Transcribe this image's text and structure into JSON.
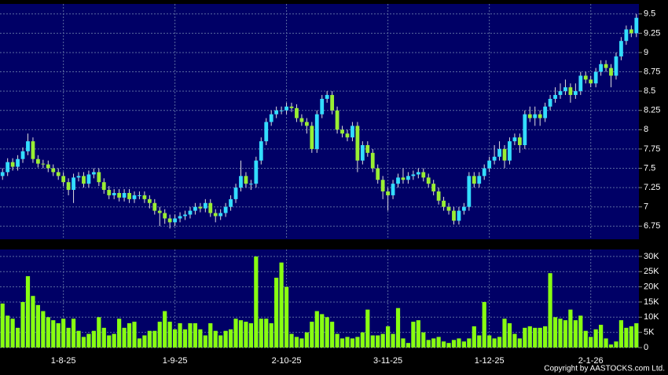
{
  "chart_data": [
    {
      "type": "candlestick",
      "up_color": "#33ddff",
      "down_color": "#99ee33",
      "grid": true,
      "ylim": [
        6.58,
        9.63
      ],
      "yticks": [
        6.75,
        7,
        7.25,
        7.5,
        7.75,
        8,
        8.25,
        8.5,
        8.75,
        9,
        9.25,
        9.5
      ],
      "open": [
        7.4,
        7.45,
        7.58,
        7.52,
        7.62,
        7.72,
        7.85,
        7.62,
        7.56,
        7.55,
        7.5,
        7.45,
        7.4,
        7.32,
        7.22,
        7.38,
        7.4,
        7.3,
        7.42,
        7.45,
        7.32,
        7.22,
        7.15,
        7.18,
        7.12,
        7.18,
        7.1,
        7.15,
        7.15,
        7.1,
        7.05,
        6.95,
        6.92,
        6.85,
        6.8,
        6.85,
        6.88,
        6.9,
        6.95,
        7.0,
        6.98,
        7.05,
        6.92,
        6.88,
        6.92,
        7.0,
        7.1,
        7.25,
        7.4,
        7.3,
        7.3,
        7.6,
        7.85,
        8.1,
        8.2,
        8.25,
        8.25,
        8.3,
        8.28,
        8.15,
        8.1,
        8.05,
        7.75,
        8.2,
        8.4,
        8.45,
        8.25,
        8.0,
        7.95,
        7.9,
        8.05,
        7.6,
        7.8,
        7.7,
        7.5,
        7.35,
        7.2,
        7.15,
        7.3,
        7.38,
        7.35,
        7.4,
        7.42,
        7.45,
        7.38,
        7.3,
        7.2,
        7.08,
        7.0,
        6.95,
        6.82,
        6.95,
        7.0,
        7.4,
        7.3,
        7.4,
        7.5,
        7.6,
        7.65,
        7.75,
        7.6,
        7.85,
        7.9,
        7.8,
        8.2,
        8.15,
        8.2,
        8.15,
        8.3,
        8.4,
        8.45,
        8.5,
        8.55,
        8.45,
        8.5,
        8.7,
        8.65,
        8.6,
        8.75,
        8.85,
        8.8,
        8.7,
        8.95,
        9.15,
        9.3,
        9.25
      ],
      "high": [
        7.5,
        7.63,
        7.63,
        7.67,
        7.77,
        7.95,
        7.9,
        7.67,
        7.61,
        7.6,
        7.55,
        7.5,
        7.45,
        7.37,
        7.43,
        7.45,
        7.45,
        7.47,
        7.5,
        7.5,
        7.37,
        7.27,
        7.23,
        7.23,
        7.23,
        7.23,
        7.2,
        7.2,
        7.2,
        7.15,
        7.1,
        7.0,
        6.97,
        6.9,
        6.9,
        6.93,
        6.95,
        7.0,
        7.05,
        7.05,
        7.1,
        7.1,
        6.97,
        6.97,
        7.05,
        7.15,
        7.3,
        7.6,
        7.45,
        7.35,
        7.65,
        7.9,
        8.15,
        8.25,
        8.3,
        8.3,
        8.35,
        8.35,
        8.33,
        8.2,
        8.15,
        8.1,
        8.25,
        8.45,
        8.5,
        8.5,
        8.3,
        8.05,
        8.0,
        8.1,
        8.1,
        7.85,
        7.85,
        7.75,
        7.55,
        7.4,
        7.25,
        7.35,
        7.43,
        7.5,
        7.45,
        7.47,
        7.5,
        7.5,
        7.43,
        7.35,
        7.25,
        7.13,
        7.05,
        7.0,
        7.0,
        7.05,
        7.45,
        7.45,
        7.45,
        7.55,
        7.65,
        7.8,
        7.85,
        7.8,
        7.9,
        7.95,
        7.95,
        8.25,
        8.3,
        8.3,
        8.25,
        8.35,
        8.45,
        8.55,
        8.6,
        8.65,
        8.6,
        8.6,
        8.75,
        8.75,
        8.7,
        8.8,
        8.9,
        8.9,
        8.85,
        9.0,
        9.2,
        9.35,
        9.35,
        9.5
      ],
      "low": [
        7.35,
        7.4,
        7.47,
        7.47,
        7.57,
        7.67,
        7.57,
        7.51,
        7.5,
        7.45,
        7.4,
        7.35,
        7.27,
        7.15,
        7.05,
        7.33,
        7.25,
        7.25,
        7.37,
        7.27,
        7.17,
        7.1,
        7.1,
        7.07,
        7.07,
        7.05,
        7.05,
        7.1,
        7.05,
        6.98,
        6.9,
        6.75,
        6.78,
        6.72,
        6.75,
        6.8,
        6.83,
        6.85,
        6.9,
        6.93,
        6.93,
        6.87,
        6.8,
        6.83,
        6.87,
        6.95,
        7.05,
        7.2,
        7.25,
        7.22,
        7.25,
        7.55,
        7.8,
        8.05,
        8.15,
        8.2,
        8.2,
        8.23,
        8.1,
        8.05,
        7.95,
        7.7,
        7.7,
        8.15,
        8.35,
        8.2,
        7.95,
        7.9,
        7.85,
        7.85,
        7.45,
        7.55,
        7.65,
        7.45,
        7.3,
        7.1,
        6.95,
        7.1,
        7.25,
        7.3,
        7.3,
        7.35,
        7.37,
        7.33,
        7.25,
        7.15,
        7.03,
        6.95,
        6.9,
        6.77,
        6.77,
        6.9,
        6.95,
        7.25,
        7.25,
        7.35,
        7.45,
        7.55,
        7.6,
        7.5,
        7.55,
        7.8,
        7.7,
        7.75,
        8.1,
        8.05,
        8.05,
        8.1,
        8.25,
        8.35,
        8.4,
        8.45,
        8.35,
        8.4,
        8.45,
        8.6,
        8.55,
        8.55,
        8.7,
        8.75,
        8.55,
        8.65,
        8.9,
        9.1,
        9.2,
        9.2
      ],
      "close": [
        7.45,
        7.58,
        7.52,
        7.62,
        7.72,
        7.85,
        7.62,
        7.56,
        7.55,
        7.5,
        7.45,
        7.4,
        7.32,
        7.22,
        7.38,
        7.4,
        7.3,
        7.42,
        7.45,
        7.32,
        7.22,
        7.15,
        7.18,
        7.12,
        7.18,
        7.1,
        7.15,
        7.15,
        7.1,
        7.05,
        6.95,
        6.92,
        6.85,
        6.8,
        6.85,
        6.88,
        6.9,
        6.95,
        7.0,
        6.98,
        7.05,
        6.92,
        6.88,
        6.92,
        7.0,
        7.1,
        7.25,
        7.4,
        7.3,
        7.3,
        7.6,
        7.85,
        8.1,
        8.2,
        8.25,
        8.25,
        8.3,
        8.28,
        8.15,
        8.1,
        8.05,
        7.75,
        8.2,
        8.4,
        8.45,
        8.25,
        8.0,
        7.95,
        7.9,
        8.05,
        7.6,
        7.8,
        7.7,
        7.5,
        7.35,
        7.2,
        7.15,
        7.3,
        7.38,
        7.35,
        7.4,
        7.42,
        7.45,
        7.38,
        7.3,
        7.2,
        7.08,
        7.0,
        6.95,
        6.82,
        6.95,
        7.0,
        7.4,
        7.3,
        7.4,
        7.5,
        7.6,
        7.65,
        7.75,
        7.6,
        7.85,
        7.9,
        7.8,
        8.2,
        8.15,
        8.2,
        8.15,
        8.3,
        8.4,
        8.45,
        8.5,
        8.55,
        8.45,
        8.5,
        8.7,
        8.65,
        8.6,
        8.75,
        8.85,
        8.8,
        8.7,
        8.95,
        9.15,
        9.3,
        9.25,
        9.45
      ]
    },
    {
      "type": "bar",
      "color": "#88ff11",
      "grid": true,
      "categories": [
        null,
        null,
        null,
        null,
        null,
        null,
        null,
        null,
        null,
        null,
        null,
        null,
        "1-8-25",
        null,
        null,
        null,
        null,
        null,
        null,
        null,
        null,
        null,
        null,
        null,
        null,
        null,
        null,
        null,
        null,
        null,
        null,
        null,
        null,
        null,
        "1-9-25",
        null,
        null,
        null,
        null,
        null,
        null,
        null,
        null,
        null,
        null,
        null,
        null,
        null,
        null,
        null,
        null,
        null,
        null,
        null,
        null,
        null,
        "2-10-25",
        null,
        null,
        null,
        null,
        null,
        null,
        null,
        null,
        null,
        null,
        null,
        null,
        null,
        null,
        null,
        null,
        null,
        null,
        null,
        "3-11-25",
        null,
        null,
        null,
        null,
        null,
        null,
        null,
        null,
        null,
        null,
        null,
        null,
        null,
        null,
        null,
        null,
        null,
        null,
        null,
        "1-12-25",
        null,
        null,
        null,
        null,
        null,
        null,
        null,
        null,
        null,
        null,
        null,
        null,
        null,
        null,
        null,
        null,
        null,
        null,
        null,
        "2-1-26",
        null,
        null,
        null,
        null,
        null,
        null,
        null,
        null,
        null
      ],
      "values": [
        14500,
        10500,
        9500,
        6500,
        15000,
        23500,
        17000,
        14000,
        12000,
        10000,
        9000,
        8000,
        9500,
        6500,
        9500,
        5500,
        3500,
        4500,
        5500,
        10000,
        6500,
        4000,
        4500,
        9500,
        6500,
        8000,
        8500,
        3000,
        4000,
        5500,
        5500,
        8500,
        12000,
        8500,
        6000,
        8000,
        6000,
        8000,
        8000,
        6000,
        4000,
        8000,
        5500,
        4000,
        5500,
        6000,
        9500,
        9000,
        8500,
        8000,
        30000,
        9500,
        9500,
        8000,
        23000,
        28000,
        20000,
        4500,
        3500,
        3000,
        5000,
        8500,
        12000,
        11000,
        10000,
        8500,
        4500,
        3000,
        3500,
        3000,
        3500,
        5000,
        12500,
        4000,
        4000,
        4500,
        7000,
        4500,
        13000,
        3000,
        1500,
        8500,
        9000,
        5000,
        2500,
        3000,
        3500,
        2000,
        1500,
        2500,
        3000,
        2000,
        3000,
        7000,
        4000,
        15000,
        4000,
        3000,
        3500,
        9500,
        8000,
        4500,
        3000,
        6500,
        7000,
        6500,
        6500,
        7000,
        24500,
        10000,
        9500,
        9000,
        12500,
        9000,
        10500,
        5500,
        3500,
        6000,
        7500,
        3000,
        1000,
        2000,
        9000,
        6500,
        7000,
        8000
      ],
      "ylim": [
        0,
        32300
      ],
      "yticks": [
        0,
        {
          "value": 5000,
          "label": "5K"
        },
        {
          "value": 10000,
          "label": "10K"
        },
        {
          "value": 15000,
          "label": "15K"
        },
        {
          "value": 20000,
          "label": "20K"
        },
        {
          "value": 25000,
          "label": "25K"
        },
        {
          "value": 30000,
          "label": "30K"
        }
      ],
      "note": "Copyright by AASTOCKS.com Ltd."
    }
  ]
}
